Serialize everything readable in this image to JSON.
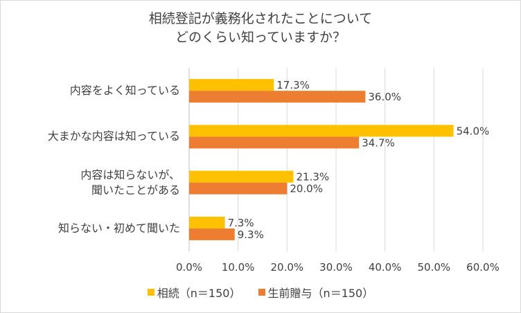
{
  "chart_data": {
    "type": "bar",
    "orientation": "horizontal",
    "title": [
      "相続登記が義務化されたことについて",
      "どのくらい知っていますか？"
    ],
    "categories": [
      [
        "内容をよく知っている"
      ],
      [
        "大まかな内容は知っている"
      ],
      [
        "内容は知らないが、",
        "聞いたことがある"
      ],
      [
        "知らない・初めて聞いた"
      ]
    ],
    "series": [
      {
        "name": "相続（n＝150）",
        "color": "#ffc000",
        "values": [
          17.3,
          54.0,
          21.3,
          7.3
        ],
        "labels": [
          "17.3%",
          "54.0%",
          "21.3%",
          "7.3%"
        ]
      },
      {
        "name": "生前贈与（n＝150）",
        "color": "#ed7d31",
        "values": [
          36.0,
          34.7,
          20.0,
          9.3
        ],
        "labels": [
          "36.0%",
          "34.7%",
          "20.0%",
          "9.3%"
        ]
      }
    ],
    "xlim": [
      0,
      60
    ],
    "xticks": [
      "0.0%",
      "10.0%",
      "20.0%",
      "30.0%",
      "40.0%",
      "50.0%",
      "60.0%"
    ],
    "grid": true,
    "legend_position": "bottom"
  }
}
